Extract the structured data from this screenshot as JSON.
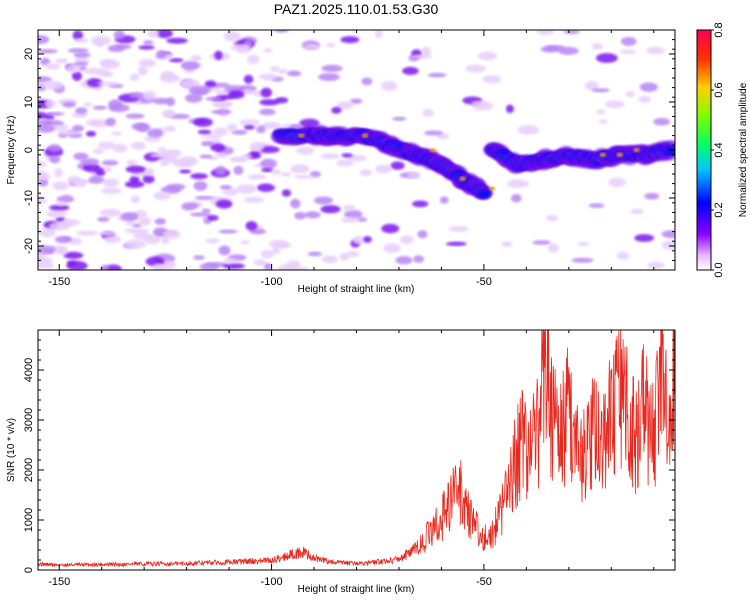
{
  "title": "PAZ1.2025.110.01.53.G30",
  "chart_data": [
    {
      "type": "heatmap",
      "xlabel": "Height of straight line (km)",
      "ylabel": "Frequency (Hz)",
      "xlim": [
        -155,
        -5
      ],
      "ylim": [
        -25,
        25
      ],
      "xticks": [
        -150,
        -100,
        -50
      ],
      "yticks": [
        -20,
        -10,
        0,
        10,
        20
      ],
      "colorbar": {
        "label": "Normalized spectral amplitude",
        "range": [
          0.0,
          0.8
        ],
        "ticks": [
          "0.0",
          "0.2",
          "0.4",
          "0.6",
          "0.8"
        ]
      },
      "ridge": {
        "x": [
          -98,
          -90,
          -85,
          -78,
          -72,
          -66,
          -60,
          -55,
          -50,
          -48,
          -42,
          -36,
          -30,
          -24,
          -18,
          -12,
          -6
        ],
        "y": [
          3,
          3,
          3,
          3,
          1,
          -1,
          -3,
          -6,
          -9,
          0,
          -3,
          -2,
          -1,
          -2,
          -1,
          -1,
          0
        ]
      },
      "grid": false
    },
    {
      "type": "line",
      "xlabel": "Height of straight line (km)",
      "ylabel": "SNR (10 * v/v)",
      "xlim": [
        -155,
        -5
      ],
      "ylim": [
        0,
        4800
      ],
      "xticks": [
        -150,
        -100,
        -50
      ],
      "yticks": [
        0,
        1000,
        2000,
        3000,
        4000
      ],
      "color": "#e8281e",
      "series": [
        {
          "x": [
            -155,
            -150,
            -140,
            -130,
            -120,
            -110,
            -100,
            -95,
            -92,
            -90,
            -85,
            -80,
            -75,
            -70,
            -66,
            -63,
            -60,
            -57,
            -55,
            -53,
            -51,
            -49,
            -47,
            -45,
            -43,
            -41,
            -39,
            -37,
            -35,
            -34,
            -32,
            -30,
            -28,
            -26,
            -24,
            -22,
            -20,
            -18,
            -16,
            -14,
            -12,
            -10,
            -8,
            -6,
            -5
          ],
          "y": [
            120,
            100,
            110,
            120,
            130,
            160,
            190,
            320,
            350,
            230,
            150,
            130,
            160,
            220,
            420,
            700,
            1000,
            1600,
            1500,
            1050,
            700,
            620,
            900,
            1400,
            2000,
            2700,
            2300,
            3000,
            4400,
            3000,
            2600,
            3200,
            2500,
            2300,
            2800,
            2600,
            3000,
            3600,
            3000,
            2700,
            3300,
            2500,
            3900,
            3400,
            4800
          ]
        }
      ]
    }
  ]
}
